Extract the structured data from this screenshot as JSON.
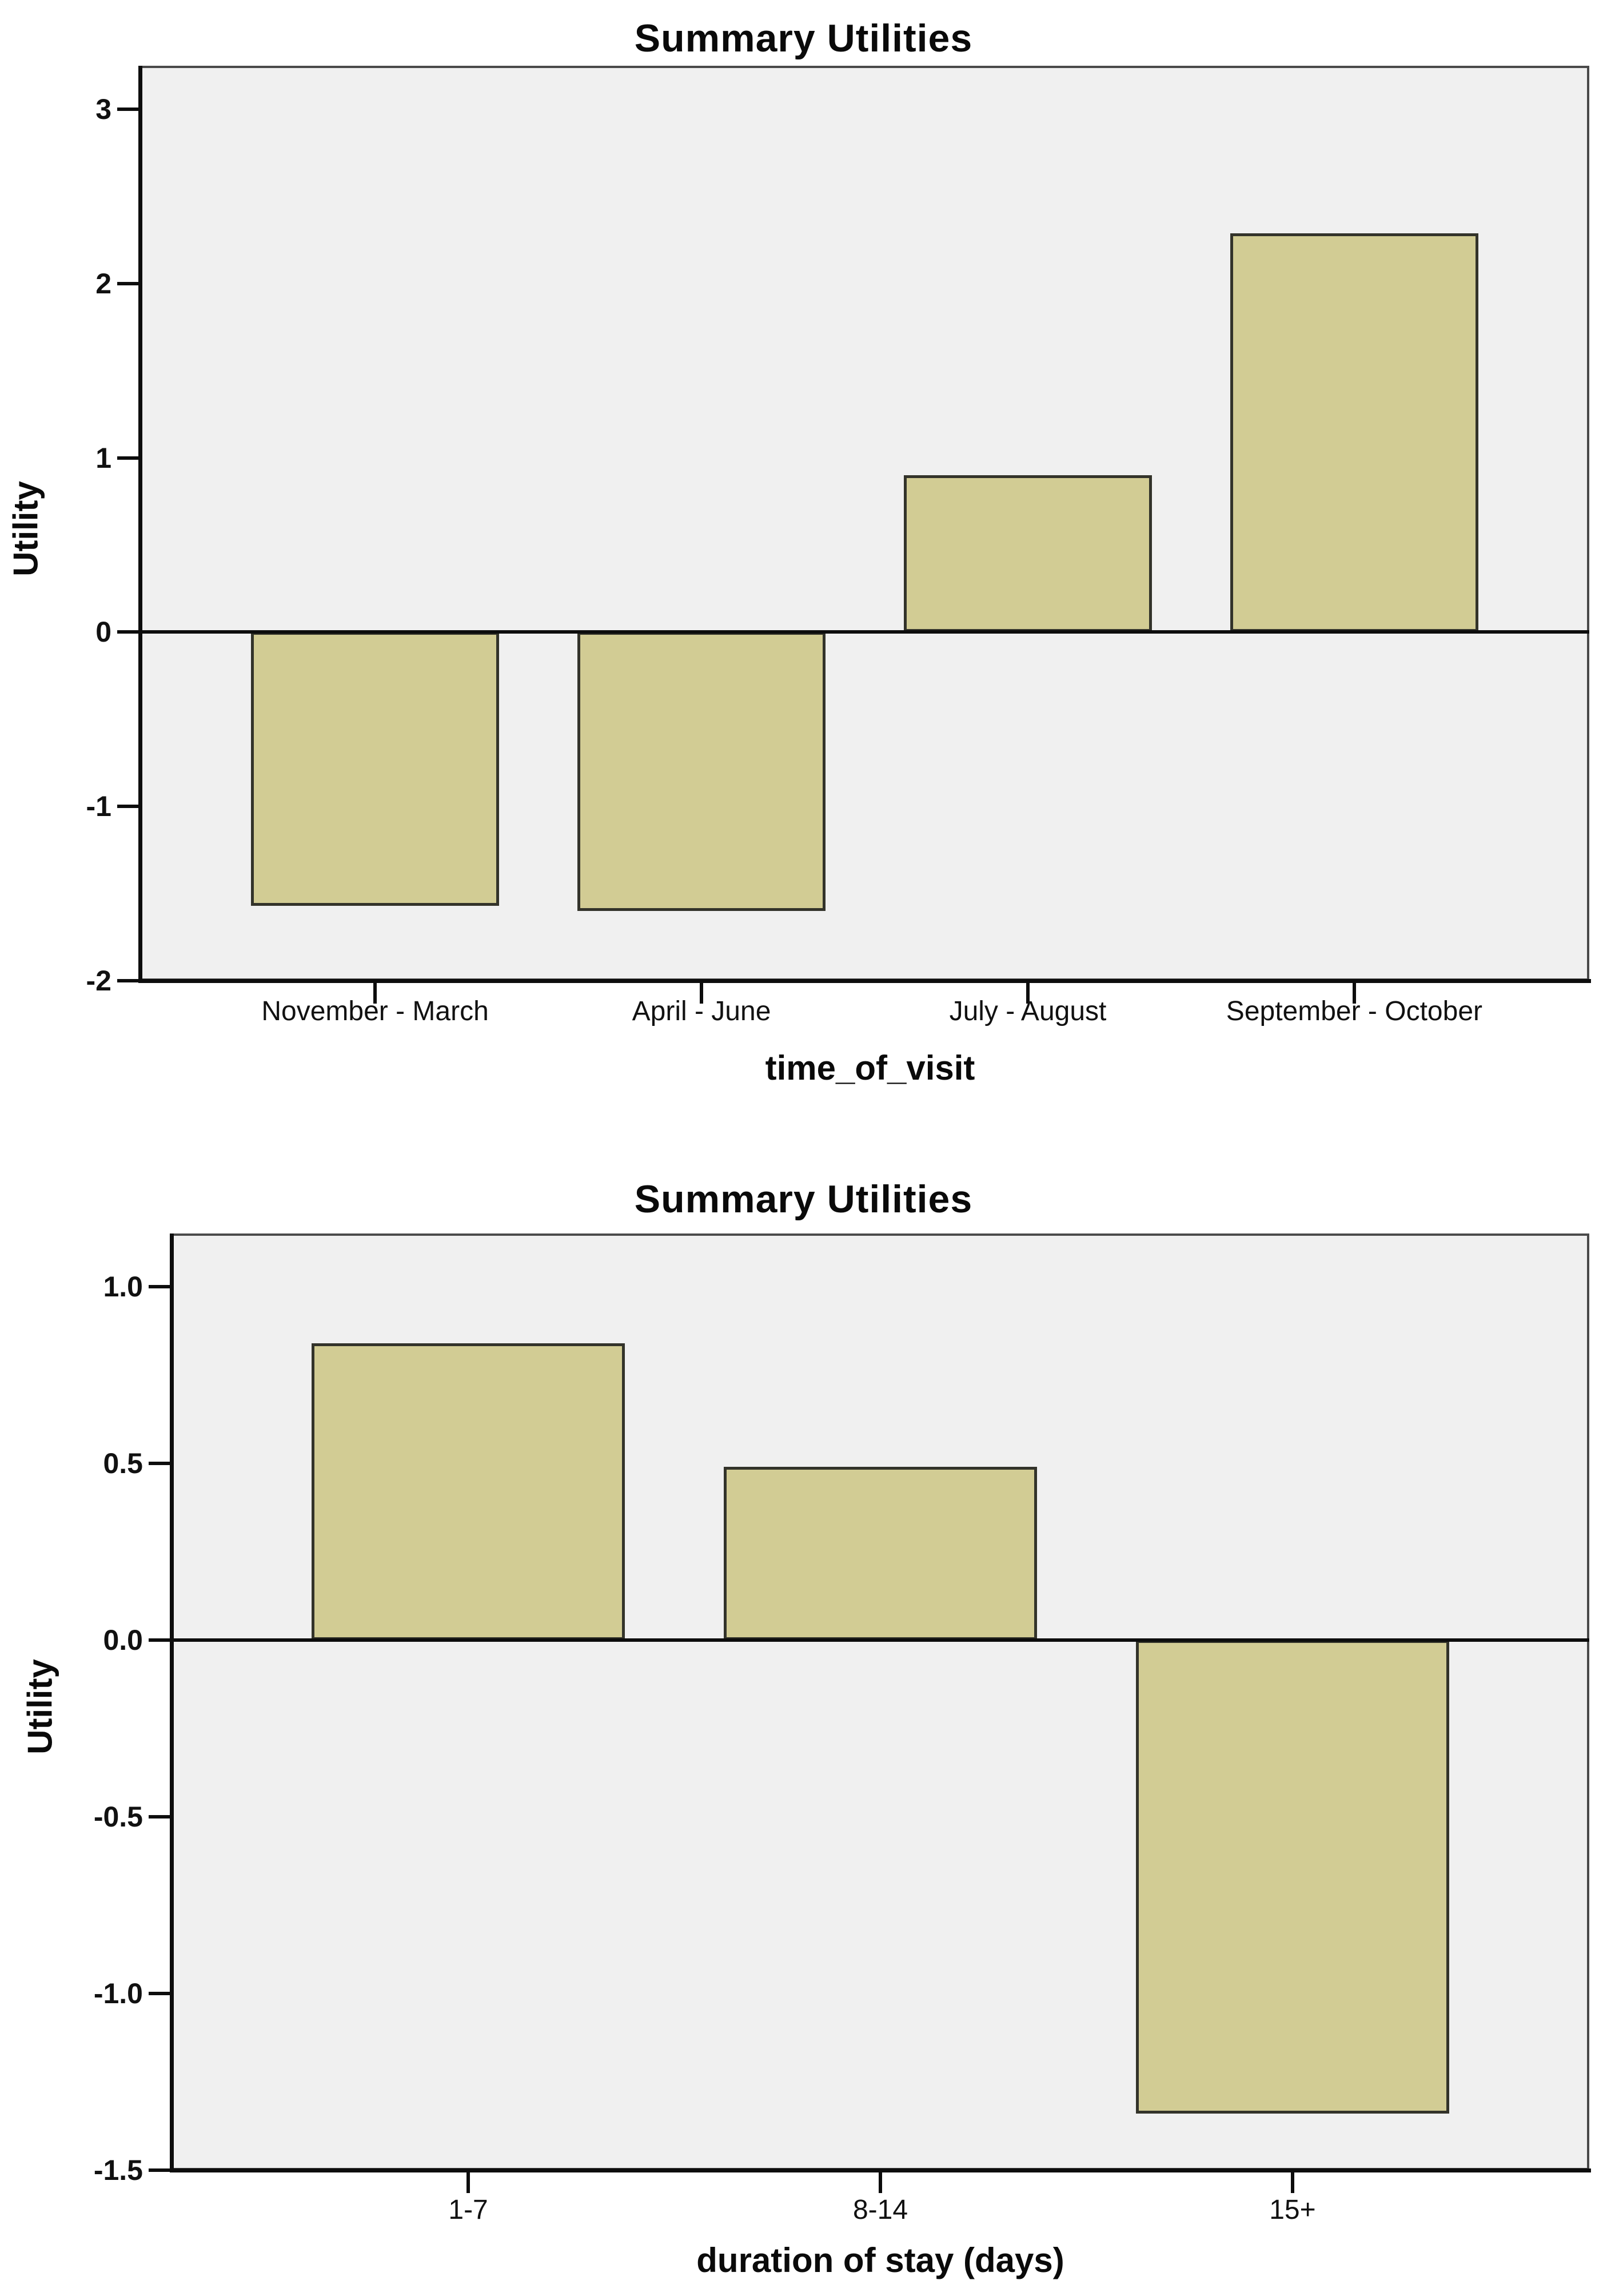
{
  "colors": {
    "bar_fill": "#d2cc94",
    "bar_border": "#33332a",
    "plot_background": "#f0f0f0",
    "frame": "#4a4a4a",
    "axis": "#0d0d0d",
    "text": "#000000",
    "page_background": "#ffffff"
  },
  "chart_data": [
    {
      "type": "bar",
      "title": "Summary Utilities",
      "xlabel": "time_of_visit",
      "ylabel": "Utility",
      "categories": [
        "November  -  March",
        "April  -  June",
        "July  -  August",
        "September  -  October"
      ],
      "values": [
        -1.57,
        -1.6,
        0.9,
        2.29
      ],
      "ylim": [
        -2,
        3.25
      ],
      "yticks": [
        3,
        2,
        1,
        0,
        -1,
        -2
      ],
      "ytick_labels": [
        "3",
        "2",
        "1",
        "0",
        "-1",
        "-2"
      ],
      "grid": false,
      "legend": "none"
    },
    {
      "type": "bar",
      "title": "Summary Utilities",
      "xlabel": "duration of stay (days)",
      "ylabel": "Utility",
      "categories": [
        "1-7",
        "8-14",
        "15+"
      ],
      "values": [
        0.84,
        0.49,
        -1.34
      ],
      "ylim": [
        -1.5,
        1.15
      ],
      "yticks": [
        1.0,
        0.5,
        0.0,
        -0.5,
        -1.0,
        -1.5
      ],
      "ytick_labels": [
        "1.0",
        "0.5",
        "0.0",
        "-0.5",
        "-1.0",
        "-1.5"
      ],
      "grid": false,
      "legend": "none"
    }
  ]
}
